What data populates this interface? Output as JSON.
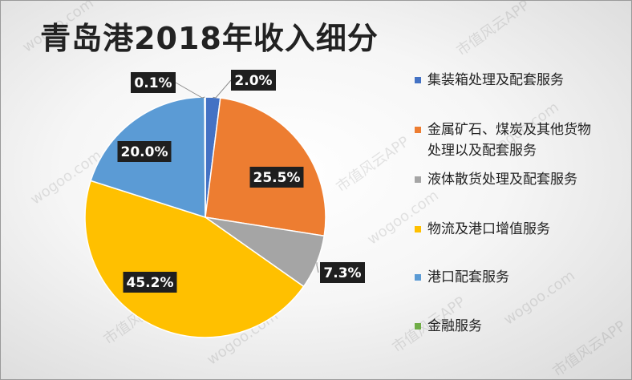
{
  "chart_data": {
    "type": "pie",
    "title": "青岛港2018年收入细分",
    "slices": [
      {
        "name": "集装箱处理及配套服务",
        "value": 2.0,
        "label": "2.0%",
        "color": "#4472C4"
      },
      {
        "name": "金属矿石、煤炭及其他货物处理以及配套服务",
        "value": 25.5,
        "label": "25.5%",
        "color": "#ED7D31"
      },
      {
        "name": "液体散货处理及配套服务",
        "value": 7.3,
        "label": "7.3%",
        "color": "#A5A5A5"
      },
      {
        "name": "物流及港口增值服务",
        "value": 45.2,
        "label": "45.2%",
        "color": "#FFC000"
      },
      {
        "name": "港口配套服务",
        "value": 20.0,
        "label": "20.0%",
        "color": "#5B9BD5"
      },
      {
        "name": "金融服务",
        "value": 0.1,
        "label": "0.1%",
        "color": "#70AD47"
      }
    ],
    "legend_position": "right"
  },
  "watermark": {
    "text_cn": "市值风云APP",
    "text_url": "wogoo.com"
  }
}
